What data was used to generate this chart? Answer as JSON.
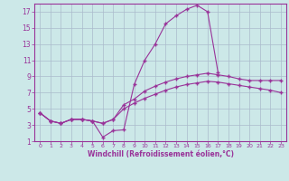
{
  "x_values": [
    0,
    1,
    2,
    3,
    4,
    5,
    6,
    7,
    8,
    9,
    10,
    11,
    12,
    13,
    14,
    15,
    16,
    17,
    18,
    19,
    20,
    21,
    22,
    23
  ],
  "line1": [
    4.5,
    3.5,
    3.2,
    3.7,
    3.7,
    3.5,
    1.5,
    2.3,
    2.4,
    8.0,
    11.0,
    13.0,
    15.5,
    16.5,
    17.3,
    17.8,
    17.0,
    9.5,
    null,
    null,
    null,
    null,
    null,
    null
  ],
  "line2": [
    4.5,
    3.5,
    3.2,
    3.7,
    3.7,
    3.5,
    3.2,
    3.7,
    5.5,
    6.2,
    7.2,
    7.8,
    8.3,
    8.7,
    9.0,
    9.2,
    9.4,
    9.2,
    9.0,
    8.7,
    8.5,
    8.5,
    8.5,
    8.5
  ],
  "line3": [
    4.5,
    3.5,
    3.2,
    3.7,
    3.7,
    3.5,
    3.2,
    3.7,
    5.0,
    5.7,
    6.3,
    6.8,
    7.3,
    7.7,
    8.0,
    8.2,
    8.4,
    8.3,
    8.1,
    7.9,
    7.7,
    7.5,
    7.3,
    7.0
  ],
  "line_color": "#993399",
  "bg_color": "#cce8e8",
  "grid_color": "#aabbcc",
  "xlabel": "Windchill (Refroidissement éolien,°C)",
  "xlim": [
    -0.5,
    23.5
  ],
  "ylim": [
    1,
    18
  ],
  "yticks": [
    1,
    3,
    5,
    7,
    9,
    11,
    13,
    15,
    17
  ],
  "xticks": [
    0,
    1,
    2,
    3,
    4,
    5,
    6,
    7,
    8,
    9,
    10,
    11,
    12,
    13,
    14,
    15,
    16,
    17,
    18,
    19,
    20,
    21,
    22,
    23
  ]
}
